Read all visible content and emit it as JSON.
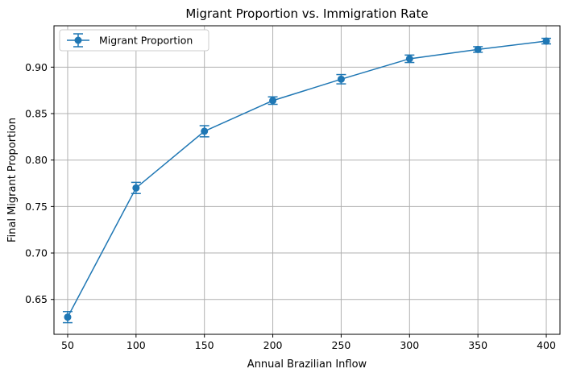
{
  "chart_data": {
    "type": "line",
    "title": "Migrant Proportion vs. Immigration Rate",
    "xlabel": "Annual Brazilian Inflow",
    "ylabel": "Final Migrant Proportion",
    "x": [
      50,
      100,
      150,
      200,
      250,
      300,
      350,
      400
    ],
    "xlim": [
      40,
      410
    ],
    "ylim": [
      0.6125,
      0.9445
    ],
    "xticks": [
      50,
      100,
      150,
      200,
      250,
      300,
      350,
      400
    ],
    "xtick_labels": [
      "50",
      "100",
      "150",
      "200",
      "250",
      "300",
      "350",
      "400"
    ],
    "yticks": [
      0.65,
      0.7,
      0.75,
      0.8,
      0.85,
      0.9
    ],
    "ytick_labels": [
      "0.65",
      "0.70",
      "0.75",
      "0.80",
      "0.85",
      "0.90"
    ],
    "grid": true,
    "legend_position": "top-left",
    "series": [
      {
        "name": "Migrant Proportion",
        "values": [
          0.631,
          0.77,
          0.831,
          0.864,
          0.887,
          0.909,
          0.919,
          0.928
        ],
        "errors": [
          0.006,
          0.006,
          0.006,
          0.004,
          0.005,
          0.004,
          0.003,
          0.003
        ],
        "color": "#1f77b4",
        "marker": "circle"
      }
    ]
  }
}
